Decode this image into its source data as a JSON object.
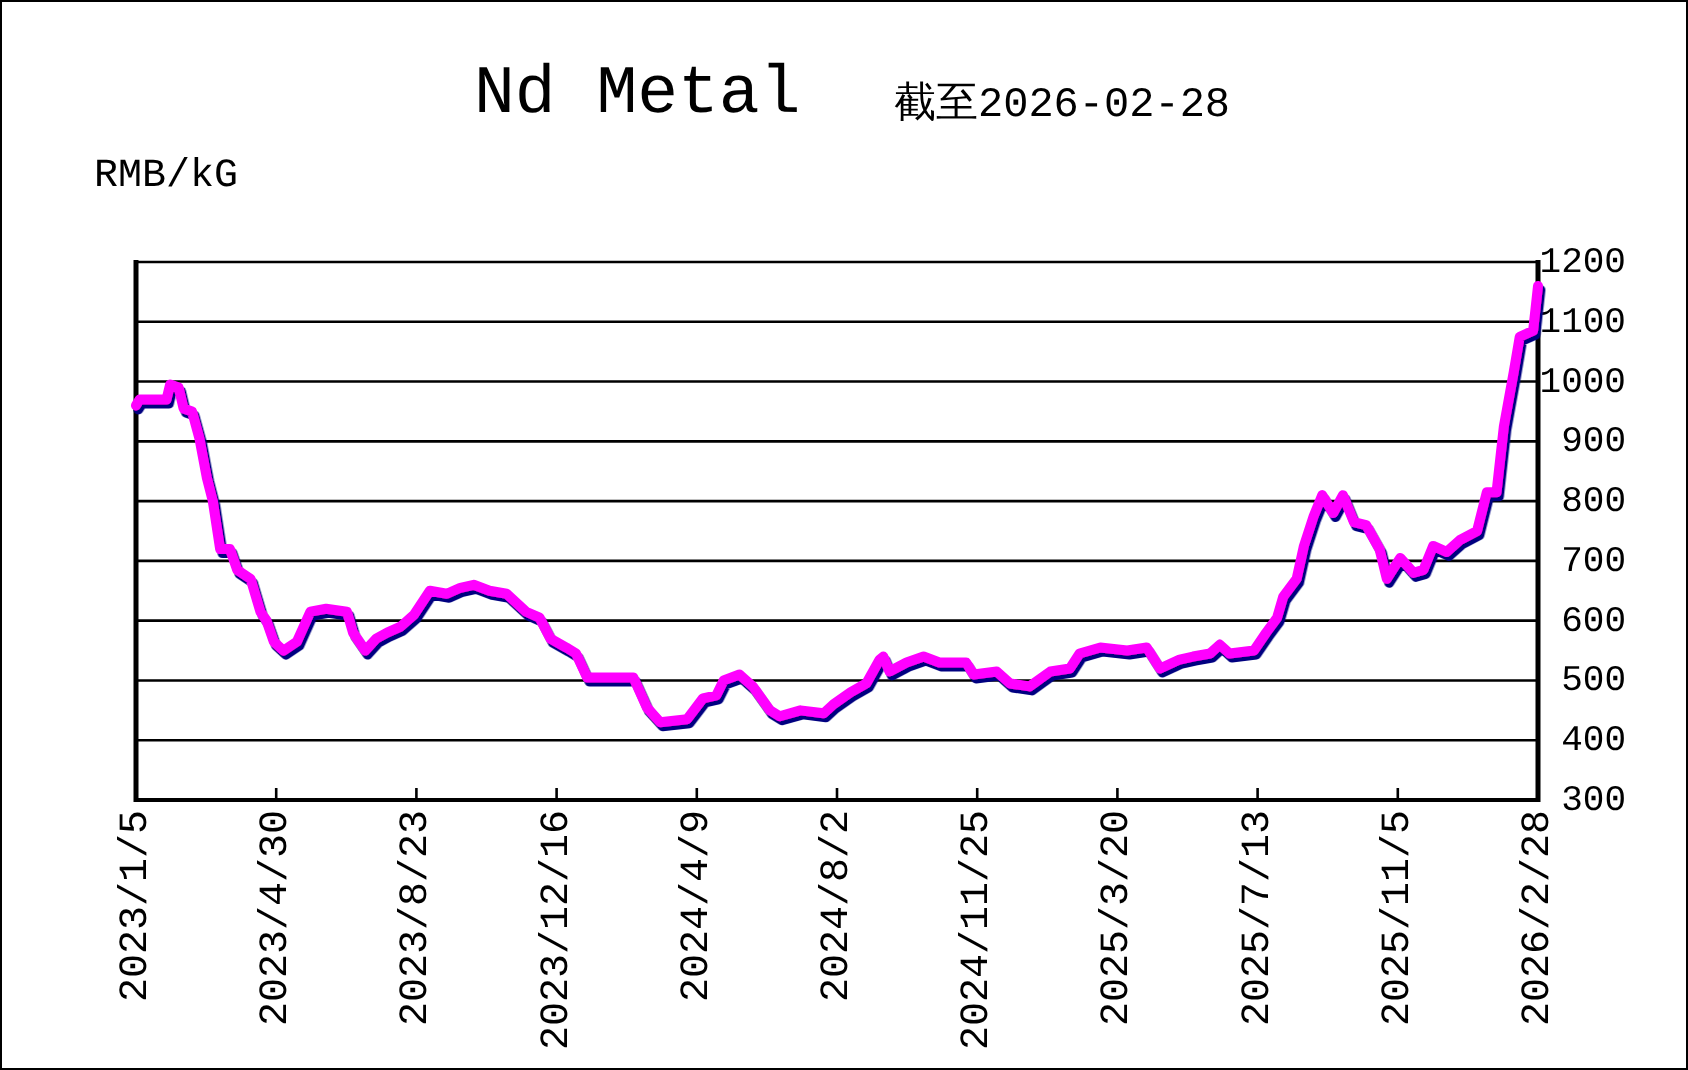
{
  "chart_data": {
    "type": "line",
    "title": "Nd Metal",
    "subtitle": "截至2026-02-28",
    "ylabel": "RMB/kG",
    "x": [
      "2023-01-05",
      "2023-01-08",
      "2023-01-30",
      "2023-02-02",
      "2023-02-09",
      "2023-02-13",
      "2023-02-20",
      "2023-02-26",
      "2023-03-04",
      "2023-03-09",
      "2023-03-15",
      "2023-03-23",
      "2023-03-29",
      "2023-04-09",
      "2023-04-17",
      "2023-04-22",
      "2023-04-28",
      "2023-05-06",
      "2023-05-17",
      "2023-05-28",
      "2023-06-10",
      "2023-06-27",
      "2023-07-02",
      "2023-07-12",
      "2023-07-21",
      "2023-07-30",
      "2023-08-10",
      "2023-08-21",
      "2023-09-03",
      "2023-09-17",
      "2023-09-28",
      "2023-10-09",
      "2023-10-22",
      "2023-11-05",
      "2023-11-21",
      "2023-12-02",
      "2023-12-11",
      "2023-12-24",
      "2024-01-01",
      "2024-01-10",
      "2024-02-17",
      "2024-02-28",
      "2024-03-10",
      "2024-04-01",
      "2024-04-14",
      "2024-04-25",
      "2024-05-01",
      "2024-05-14",
      "2024-05-25",
      "2024-06-08",
      "2024-06-16",
      "2024-07-03",
      "2024-07-22",
      "2024-07-30",
      "2024-08-13",
      "2024-08-26",
      "2024-09-06",
      "2024-09-09",
      "2024-09-14",
      "2024-09-28",
      "2024-10-12",
      "2024-10-25",
      "2024-11-16",
      "2024-11-22",
      "2024-12-11",
      "2024-12-22",
      "2025-01-07",
      "2025-01-24",
      "2025-02-09",
      "2025-02-17",
      "2025-03-06",
      "2025-03-28",
      "2025-04-13",
      "2025-04-24",
      "2025-05-10",
      "2025-05-21",
      "2025-06-04",
      "2025-06-12",
      "2025-06-20",
      "2025-07-10",
      "2025-07-20",
      "2025-07-29",
      "2025-08-03",
      "2025-08-14",
      "2025-08-20",
      "2025-08-28",
      "2025-09-04",
      "2025-09-13",
      "2025-09-21",
      "2025-09-30",
      "2025-10-10",
      "2025-10-21",
      "2025-10-27",
      "2025-11-07",
      "2025-11-18",
      "2025-11-26",
      "2025-12-04",
      "2025-12-15",
      "2025-12-26",
      "2026-01-09",
      "2026-01-17",
      "2026-01-25",
      "2026-01-31",
      "2026-02-08",
      "2026-02-13",
      "2026-02-24",
      "2026-02-28"
    ],
    "series": [
      {
        "color": "#ff00ff",
        "values": [
          960,
          970,
          970,
          995,
          990,
          955,
          950,
          905,
          840,
          800,
          720,
          720,
          685,
          670,
          615,
          600,
          565,
          550,
          565,
          615,
          620,
          615,
          580,
          550,
          570,
          580,
          590,
          610,
          650,
          645,
          655,
          660,
          650,
          645,
          615,
          605,
          570,
          555,
          545,
          505,
          505,
          455,
          430,
          435,
          470,
          475,
          500,
          510,
          490,
          450,
          440,
          450,
          445,
          460,
          480,
          495,
          535,
          540,
          515,
          530,
          540,
          530,
          530,
          510,
          515,
          495,
          490,
          515,
          520,
          545,
          555,
          550,
          555,
          520,
          535,
          540,
          545,
          560,
          545,
          550,
          580,
          605,
          640,
          670,
          725,
          775,
          810,
          780,
          810,
          765,
          760,
          720,
          670,
          705,
          680,
          685,
          725,
          715,
          735,
          750,
          815,
          815,
          925,
          1015,
          1075,
          1085,
          1160
        ]
      }
    ],
    "xlim": [
      "2023-01-05",
      "2026-02-28"
    ],
    "xticks": [
      {
        "value": "2023-01-05",
        "label": "2023/1/5"
      },
      {
        "value": "2023-04-30",
        "label": "2023/4/30"
      },
      {
        "value": "2023-08-23",
        "label": "2023/8/23"
      },
      {
        "value": "2023-12-16",
        "label": "2023/12/16"
      },
      {
        "value": "2024-04-09",
        "label": "2024/4/9"
      },
      {
        "value": "2024-08-02",
        "label": "2024/8/2"
      },
      {
        "value": "2024-11-25",
        "label": "2024/11/25"
      },
      {
        "value": "2025-03-20",
        "label": "2025/3/20"
      },
      {
        "value": "2025-07-13",
        "label": "2025/7/13"
      },
      {
        "value": "2025-11-05",
        "label": "2025/11/5"
      },
      {
        "value": "2026-02-28",
        "label": "2026/2/28"
      }
    ],
    "ylim": [
      300,
      1200
    ],
    "yticks": [
      300,
      400,
      500,
      600,
      700,
      800,
      900,
      1000,
      1100,
      1200
    ],
    "grid": "y",
    "line_style": "solid"
  }
}
